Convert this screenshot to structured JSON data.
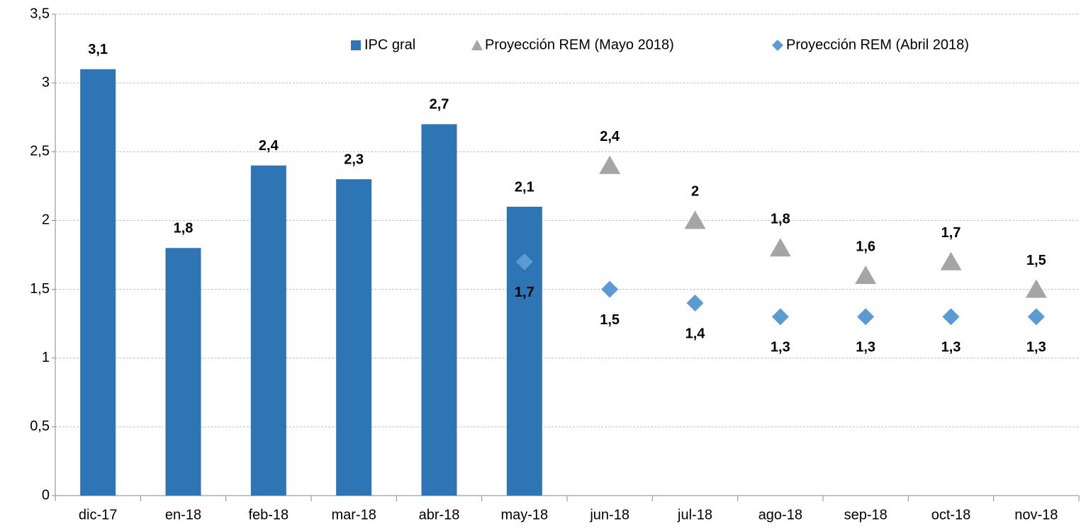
{
  "chart_data": {
    "type": "bar",
    "categories": [
      "dic-17",
      "en-18",
      "feb-18",
      "mar-18",
      "abr-18",
      "may-18",
      "jun-18",
      "jul-18",
      "ago-18",
      "sep-18",
      "oct-18",
      "nov-18"
    ],
    "series": [
      {
        "name": "IPC gral",
        "color": "#2E75B6",
        "marker": "bar",
        "values": [
          3.1,
          1.8,
          2.4,
          2.3,
          2.7,
          2.1,
          null,
          null,
          null,
          null,
          null,
          null
        ],
        "value_labels": [
          "3,1",
          "1,8",
          "2,4",
          "2,3",
          "2,7",
          "2,1",
          null,
          null,
          null,
          null,
          null,
          null
        ]
      },
      {
        "name": "Proyección REM (Mayo 2018)",
        "color": "#A5A5A5",
        "marker": "triangle",
        "values": [
          null,
          null,
          null,
          null,
          null,
          null,
          2.4,
          2,
          1.8,
          1.6,
          1.7,
          1.5
        ],
        "value_labels": [
          null,
          null,
          null,
          null,
          null,
          null,
          "2,4",
          "2",
          "1,8",
          "1,6",
          "1,7",
          "1,5"
        ]
      },
      {
        "name": "Proyección REM (Abril 2018)",
        "color": "#5B9BD5",
        "marker": "diamond",
        "values": [
          null,
          null,
          null,
          null,
          null,
          1.7,
          1.5,
          1.4,
          1.3,
          1.3,
          1.3,
          1.3
        ],
        "value_labels": [
          null,
          null,
          null,
          null,
          null,
          "1,7",
          "1,5",
          "1,4",
          "1,3",
          "1,3",
          "1,3",
          "1,3"
        ]
      }
    ],
    "ylim": [
      0,
      3.5
    ],
    "yticks": [
      0,
      {
        "value": 0.5,
        "label": "0,5"
      },
      1,
      {
        "value": 1.5,
        "label": "1,5"
      },
      2,
      {
        "value": 2.5,
        "label": "2,5"
      },
      3,
      {
        "value": 3.5,
        "label": "3,5"
      }
    ],
    "grid": true,
    "legend": "top"
  }
}
